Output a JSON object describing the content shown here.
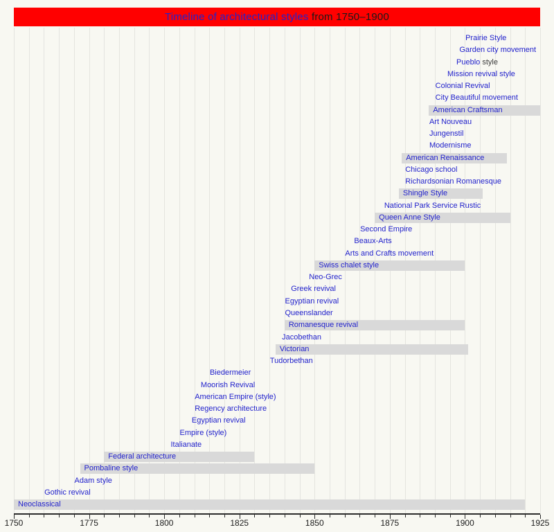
{
  "colors": {
    "background": "#f8f8f2",
    "title_band": "#ff0000",
    "link": "#2222cc",
    "text": "#1a1a1a",
    "suffix": "#3c3c3c",
    "bar": "#d9d9d9",
    "gridline": "#e4e4df",
    "axis": "#2b2b2b"
  },
  "chart_data": {
    "type": "timeline",
    "title": "Timeline of architectural styles from 1750–1900",
    "title_link_text": "Timeline of architectural styles",
    "title_suffix_text": " from 1750–1900",
    "axis": {
      "min": 1750,
      "max": 1925,
      "minor_step": 5,
      "major_step": 25,
      "orientation": "horizontal",
      "position": "bottom",
      "tick_labels": [
        "1750",
        "1775",
        "1800",
        "1825",
        "1850",
        "1875",
        "1900",
        "1925"
      ]
    },
    "entries": [
      {
        "label": "Prairie Style",
        "at": 1899
      },
      {
        "label": "Garden city movement",
        "at": 1897
      },
      {
        "label": "Pueblo",
        "suffix": " style",
        "at": 1896
      },
      {
        "label": "Mission revival style",
        "at": 1893
      },
      {
        "label": "Colonial Revival",
        "at": 1889
      },
      {
        "label": "City Beautiful movement",
        "at": 1889
      },
      {
        "label": "American Craftsman",
        "from": 1888,
        "till": 1925
      },
      {
        "label": "Art Nouveau",
        "at": 1887
      },
      {
        "label": "Jungenstil",
        "at": 1887
      },
      {
        "label": "Modernisme",
        "at": 1887
      },
      {
        "label": "American Renaissance",
        "from": 1879,
        "till": 1914
      },
      {
        "label": "Chicago school",
        "at": 1879
      },
      {
        "label": "Richardsonian Romanesque",
        "at": 1879
      },
      {
        "label": "Shingle Style",
        "from": 1878,
        "till": 1906
      },
      {
        "label": "National Park Service Rustic",
        "at": 1872
      },
      {
        "label": "Queen Anne Style",
        "from": 1870,
        "till": 1915
      },
      {
        "label": "Second Empire",
        "at": 1864
      },
      {
        "label": "Beaux-Arts",
        "at": 1862
      },
      {
        "label": "Arts and Crafts movement",
        "at": 1859
      },
      {
        "label": "Swiss chalet style",
        "from": 1850,
        "till": 1900
      },
      {
        "label": "Neo-Grec",
        "at": 1847
      },
      {
        "label": "Greek revival",
        "at": 1841
      },
      {
        "label": "Egyptian revival",
        "at": 1839
      },
      {
        "label": "Queenslander",
        "at": 1839
      },
      {
        "label": "Romanesque revival",
        "from": 1840,
        "till": 1900
      },
      {
        "label": "Jacobethan",
        "at": 1838
      },
      {
        "label": "Victorian",
        "from": 1837,
        "till": 1901
      },
      {
        "label": "Tudorbethan",
        "at": 1834
      },
      {
        "label": "Biedermeier",
        "at": 1814
      },
      {
        "label": "Moorish Revival",
        "at": 1811
      },
      {
        "label": "American Empire (style)",
        "at": 1809
      },
      {
        "label": "Regency architecture",
        "at": 1809
      },
      {
        "label": "Egyptian revival",
        "at": 1808
      },
      {
        "label": "Empire (style)",
        "at": 1804
      },
      {
        "label": "Italianate",
        "at": 1801
      },
      {
        "label": "Federal architecture",
        "from": 1780,
        "till": 1830
      },
      {
        "label": "Pombaline style",
        "from": 1772,
        "till": 1850
      },
      {
        "label": "Adam style",
        "at": 1769
      },
      {
        "label": "Gothic revival",
        "at": 1759
      },
      {
        "label": "Neoclassical",
        "from": 1750,
        "till": 1920
      }
    ]
  }
}
